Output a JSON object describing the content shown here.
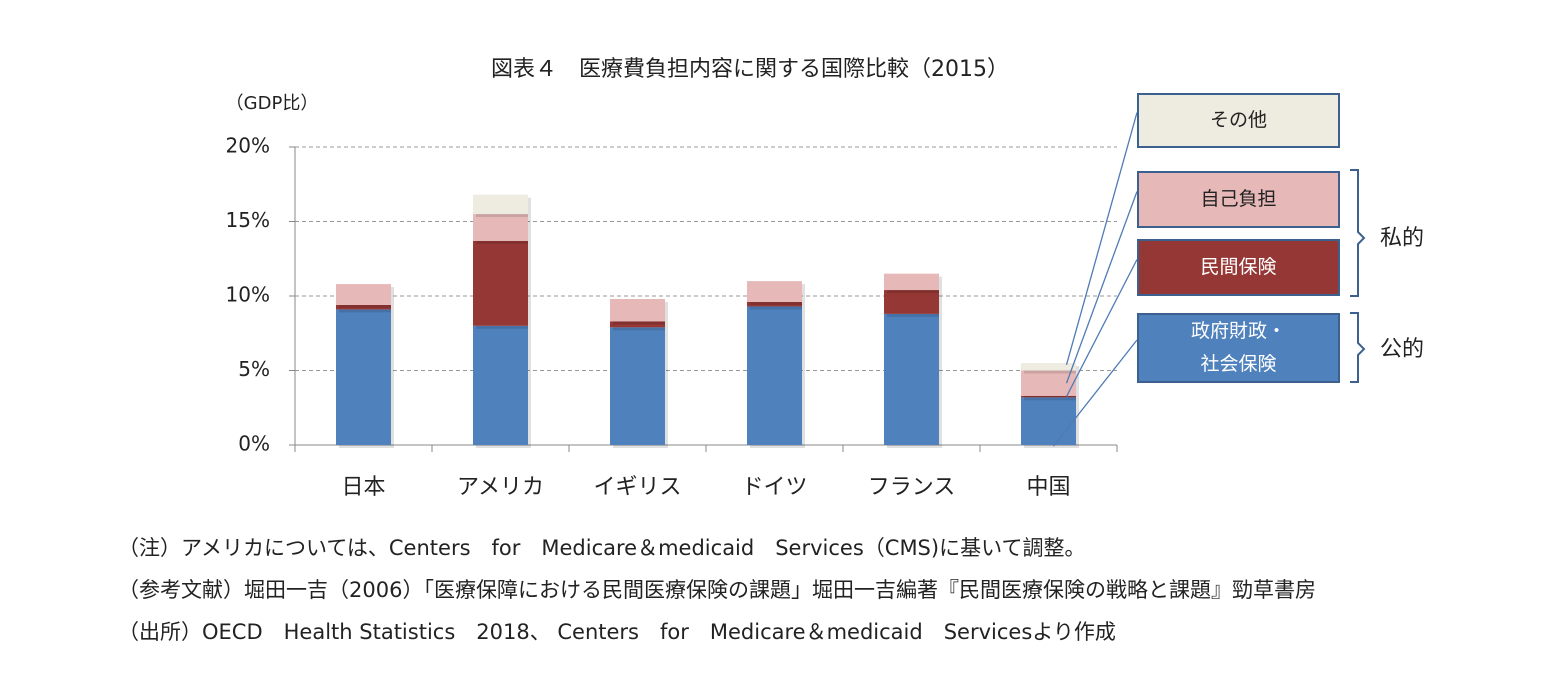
{
  "chart_data": {
    "type": "stacked_bar",
    "title": "図表４　医療費負担内容に関する国際比較（2015）",
    "y_label": "（GDP比）",
    "categories": [
      "日本",
      "アメリカ",
      "イギリス",
      "ドイツ",
      "フランス",
      "中国"
    ],
    "series": [
      {
        "name": "政府財政・社会保険",
        "color": "#4f81bd",
        "values": [
          9.1,
          8.0,
          7.9,
          9.3,
          8.8,
          3.2
        ]
      },
      {
        "name": "民間保険",
        "color": "#953735",
        "values": [
          0.3,
          5.7,
          0.4,
          0.3,
          1.6,
          0.1
        ]
      },
      {
        "name": "自己負担",
        "color": "#e6b9b8",
        "values": [
          1.4,
          1.8,
          1.5,
          1.4,
          1.1,
          1.7
        ]
      },
      {
        "name": "その他",
        "color": "#eeece1",
        "values": [
          0,
          1.3,
          0,
          0,
          0,
          0.5
        ]
      }
    ],
    "ylim": [
      0,
      20
    ],
    "yticks": [
      {
        "value": 0,
        "label": "0%"
      },
      {
        "value": 5,
        "label": "5%"
      },
      {
        "value": 10,
        "label": "10%"
      },
      {
        "value": 15,
        "label": "15%"
      },
      {
        "value": 20,
        "label": "20%"
      }
    ],
    "grid": true,
    "groups": [
      "私的",
      "公的"
    ],
    "notes": [
      "（注）アメリカについては、Centers　for　Medicare＆medicaid　Services（CMS)に基いて調整。",
      "（参考文献）堀田一吉（2006）「医療保障における民間医療保険の課題」堀田一吉編著『民間医療保険の戦略と課題』勁草書房",
      "（出所）OECD　Health Statistics　2018、 Centers　for　Medicare＆medicaid　Servicesより作成"
    ]
  }
}
